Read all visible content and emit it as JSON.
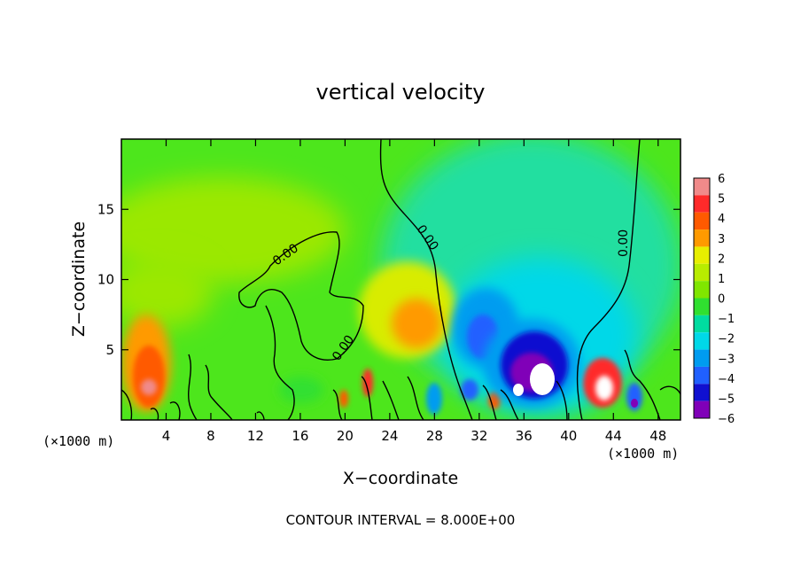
{
  "chart_data": {
    "type": "heatmap",
    "title": "vertical velocity",
    "xlabel": "X−coordinate",
    "ylabel": "Z−coordinate",
    "x_unit": "(×1000 m)",
    "x_unit_right": "(×1000 m)",
    "xlim": [
      0,
      50
    ],
    "ylim": [
      0,
      20
    ],
    "xticks": [
      4,
      8,
      12,
      16,
      20,
      24,
      28,
      32,
      36,
      40,
      44,
      48
    ],
    "xtick_labels": [
      "4",
      "8",
      "12",
      "16",
      "20",
      "24",
      "28",
      "32",
      "36",
      "40",
      "44",
      "48"
    ],
    "yticks": [
      5,
      10,
      15
    ],
    "ytick_labels": [
      "5",
      "10",
      "15"
    ],
    "colorbar": {
      "levels": [
        6,
        5,
        4,
        3,
        2,
        1,
        0,
        -1,
        -2,
        -3,
        -4,
        -5,
        -6
      ],
      "labels": [
        "6",
        "5",
        "4",
        "3",
        "2",
        "1",
        "0",
        "−1",
        "−2",
        "−3",
        "−4",
        "−5",
        "−6"
      ],
      "colors": [
        "#f08a8a",
        "#ff2a2a",
        "#ff5a00",
        "#ff9a00",
        "#e8ee00",
        "#b8ec00",
        "#80e600",
        "#30e030",
        "#00dca0",
        "#00d8e8",
        "#009cf0",
        "#2060ff",
        "#1010d0",
        "#8000b8"
      ]
    },
    "contour_labels": [
      "0.00",
      "0.00",
      "0.00",
      "0.00"
    ],
    "features": [
      {
        "kind": "updraft",
        "x": 2.5,
        "z": 3.0,
        "peak": 5.5
      },
      {
        "kind": "updraft",
        "x": 22.0,
        "z": 2.5,
        "peak": 4.5
      },
      {
        "kind": "updraft",
        "x": 19.8,
        "z": 1.5,
        "peak": 4.0
      },
      {
        "kind": "updraft",
        "x": 26.5,
        "z": 6.5,
        "peak": 3.0
      },
      {
        "kind": "updraft",
        "x": 43.0,
        "z": 2.5,
        "peak": 6.5
      },
      {
        "kind": "downdraft",
        "x": 37.0,
        "z": 3.5,
        "peak": -6.5
      },
      {
        "kind": "downdraft",
        "x": 32.5,
        "z": 6.0,
        "peak": -4.0
      },
      {
        "kind": "downdraft",
        "x": 45.8,
        "z": 1.5,
        "peak": -4.0
      },
      {
        "kind": "downdraft",
        "x": 28.0,
        "z": 1.5,
        "peak": -3.0
      }
    ],
    "annotation": "CONTOUR INTERVAL = 8.000E+00"
  }
}
